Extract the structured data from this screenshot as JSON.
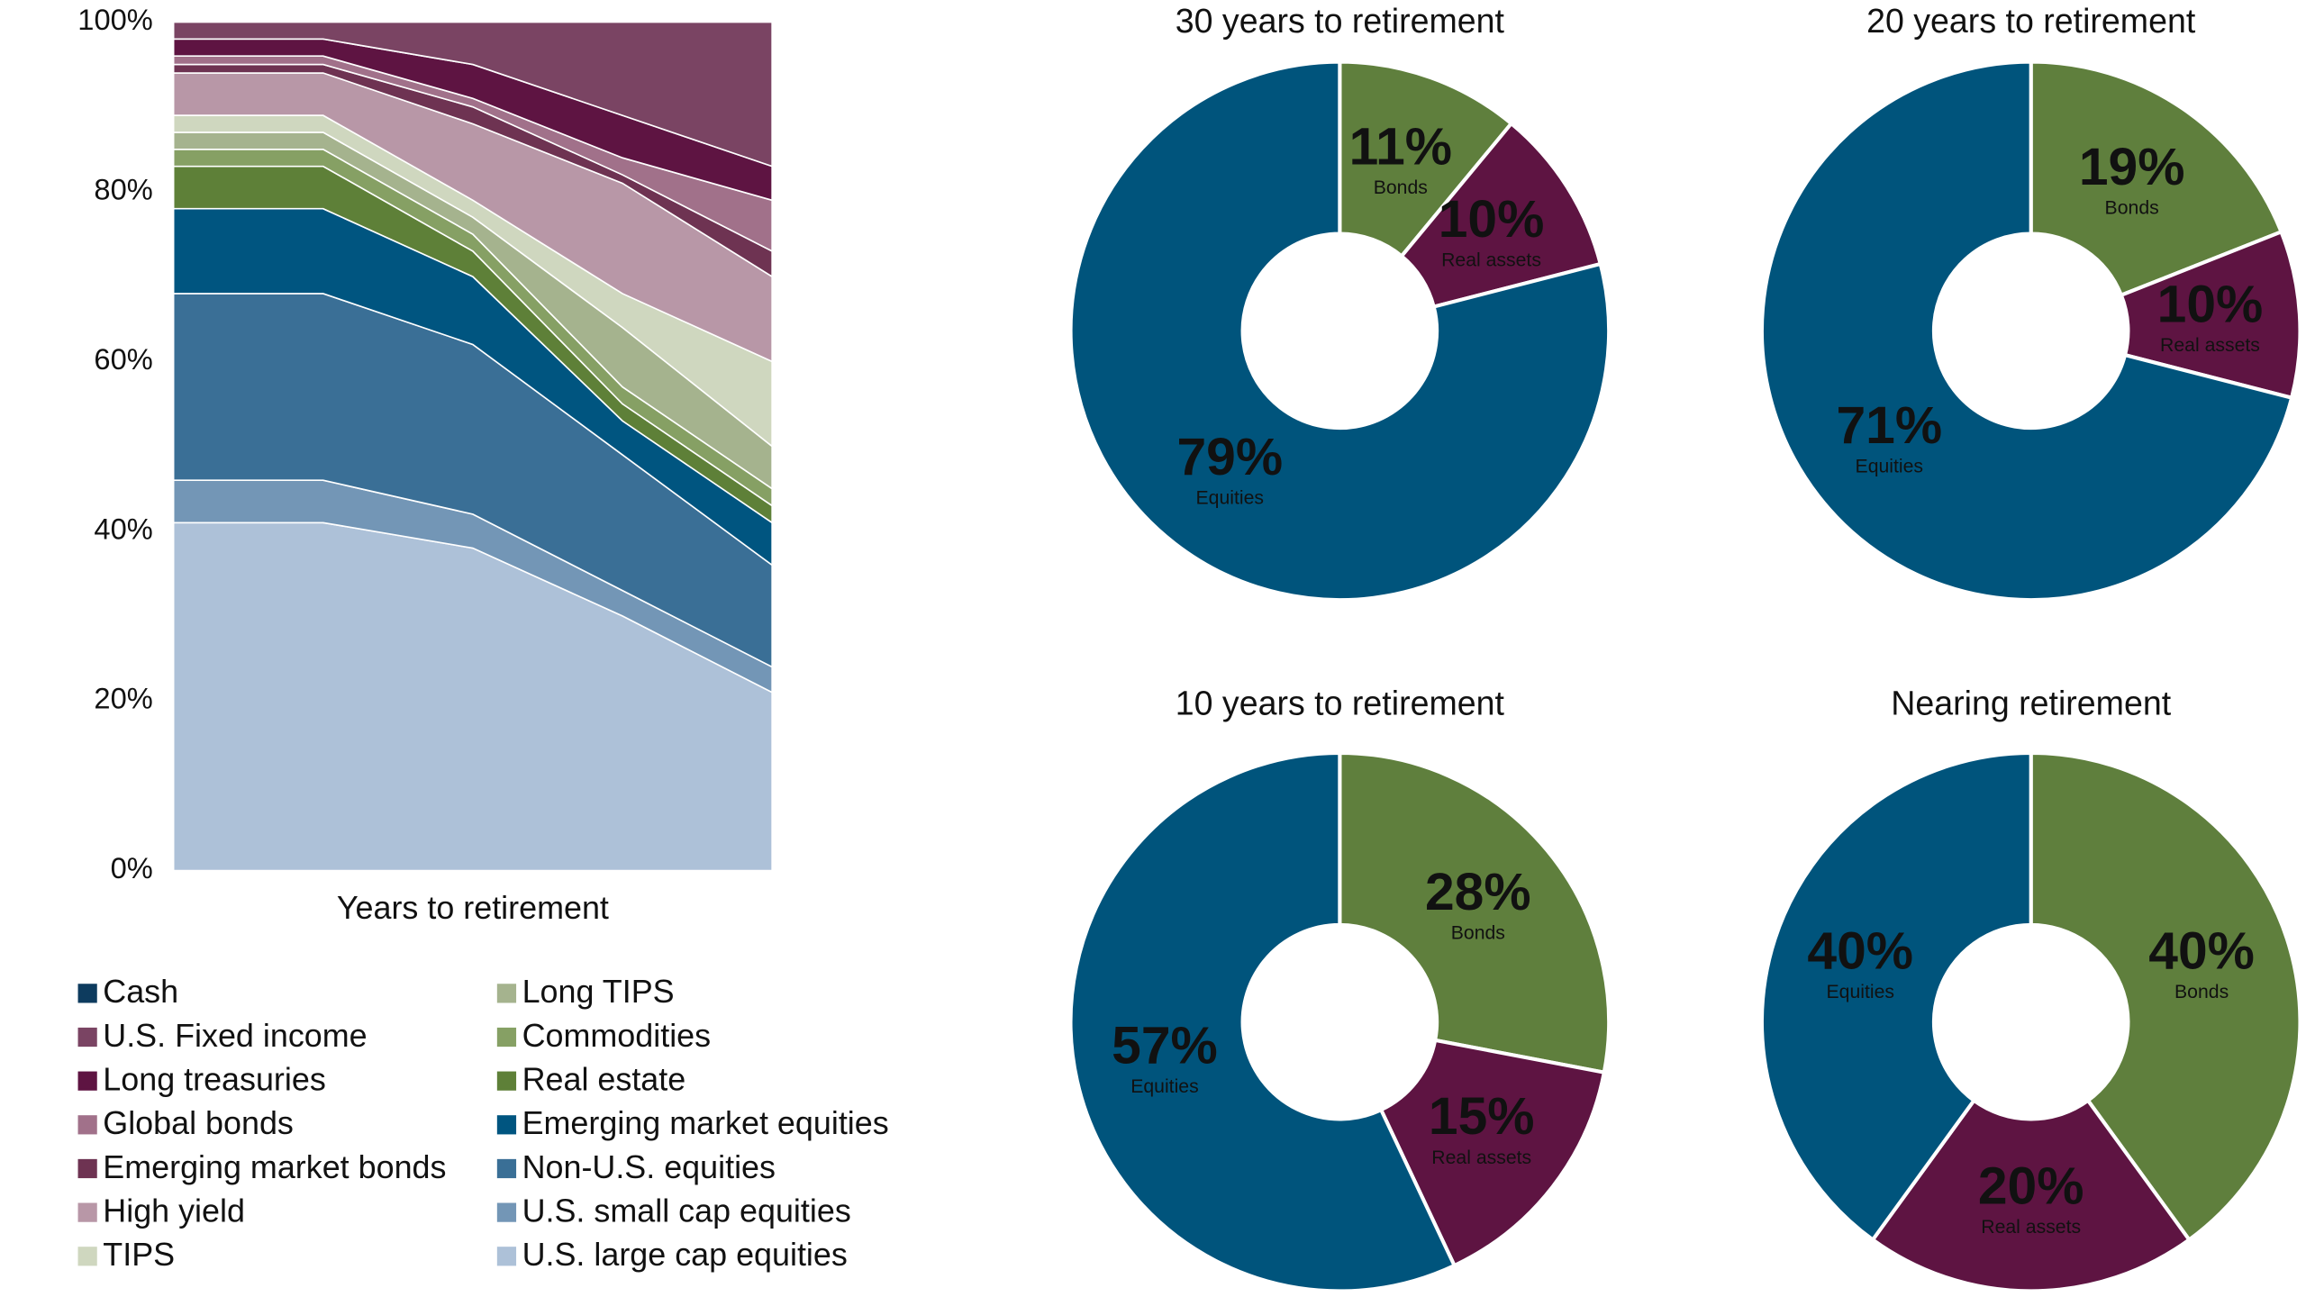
{
  "chart_data": [
    {
      "type": "area",
      "stacked": true,
      "x_label": "Years to retirement",
      "categories": [
        null,
        null,
        null,
        null,
        null
      ],
      "ylim": [
        0,
        100
      ],
      "yticks": [
        {
          "value": 0,
          "label": "0%"
        },
        {
          "value": 20,
          "label": "20%"
        },
        {
          "value": 40,
          "label": "40%"
        },
        {
          "value": 60,
          "label": "60%"
        },
        {
          "value": 80,
          "label": "80%"
        },
        {
          "value": 100,
          "label": "100%"
        }
      ],
      "series": [
        {
          "name": "Cash",
          "color": "#0d3b5e",
          "values": [
            0,
            0,
            0,
            0,
            0
          ]
        },
        {
          "name": "U.S. Fixed income",
          "color": "#7a4463",
          "values": [
            2,
            2,
            5,
            11,
            17
          ]
        },
        {
          "name": "Long treasuries",
          "color": "#5e1442",
          "values": [
            2,
            2,
            4,
            5,
            4
          ]
        },
        {
          "name": "Global bonds",
          "color": "#a1718a",
          "values": [
            1,
            1,
            1,
            2,
            6
          ]
        },
        {
          "name": "Emerging market bonds",
          "color": "#6e3352",
          "values": [
            1,
            1,
            2,
            1,
            3
          ]
        },
        {
          "name": "High yield",
          "color": "#b897a7",
          "values": [
            5,
            5,
            9,
            13,
            10
          ]
        },
        {
          "name": "TIPS",
          "color": "#cfd7bf",
          "values": [
            2,
            2,
            2,
            4,
            10
          ]
        },
        {
          "name": "Long TIPS",
          "color": "#a5b38e",
          "values": [
            2,
            2,
            2,
            7,
            5
          ]
        },
        {
          "name": "Commodities",
          "color": "#86a064",
          "values": [
            2,
            2,
            2,
            2,
            2
          ]
        },
        {
          "name": "Real estate",
          "color": "#5e8038",
          "values": [
            5,
            5,
            3,
            2,
            2
          ]
        },
        {
          "name": "Emerging market equities",
          "color": "#005580",
          "values": [
            10,
            10,
            8,
            4,
            5
          ]
        },
        {
          "name": "Non-U.S. equities",
          "color": "#3a6f96",
          "values": [
            22,
            22,
            20,
            16,
            12
          ]
        },
        {
          "name": "U.S. small cap equities",
          "color": "#7396b6",
          "values": [
            5,
            5,
            4,
            3,
            3
          ]
        },
        {
          "name": "U.S. large cap equities",
          "color": "#adc1d8",
          "values": [
            41,
            41,
            38,
            30,
            21
          ]
        }
      ]
    },
    {
      "type": "donut",
      "title": "30 years to retirement",
      "categories": [
        "Bonds",
        "Real assets",
        "Equities"
      ],
      "values": [
        11,
        10,
        79
      ],
      "value_labels": [
        "11%",
        "10%",
        "79%"
      ],
      "colors": [
        "#5f7f3d",
        "#5e1442",
        "#00547c"
      ]
    },
    {
      "type": "donut",
      "title": "20 years to retirement",
      "categories": [
        "Bonds",
        "Real assets",
        "Equities"
      ],
      "values": [
        19,
        10,
        71
      ],
      "value_labels": [
        "19%",
        "10%",
        "71%"
      ],
      "colors": [
        "#5f7f3d",
        "#5e1442",
        "#00547c"
      ]
    },
    {
      "type": "donut",
      "title": "10 years to retirement",
      "categories": [
        "Bonds",
        "Real assets",
        "Equities"
      ],
      "values": [
        28,
        15,
        57
      ],
      "value_labels": [
        "28%",
        "15%",
        "57%"
      ],
      "colors": [
        "#5f7f3d",
        "#5e1442",
        "#00547c"
      ]
    },
    {
      "type": "donut",
      "title": "Nearing retirement",
      "categories": [
        "Bonds",
        "Real assets",
        "Equities"
      ],
      "values": [
        40,
        20,
        40
      ],
      "value_labels": [
        "40%",
        "20%",
        "40%"
      ],
      "colors": [
        "#5f7f3d",
        "#5e1442",
        "#00547c"
      ]
    }
  ]
}
